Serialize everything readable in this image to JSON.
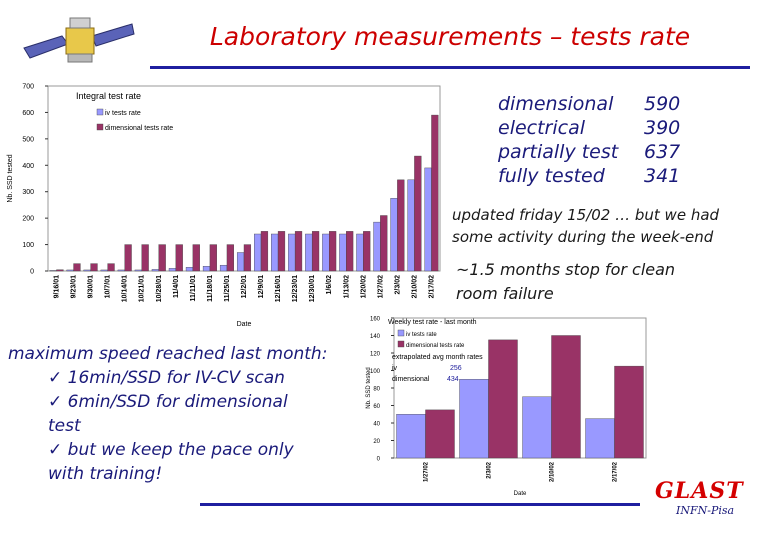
{
  "slide": {
    "title": "Laboratory measurements – tests rate"
  },
  "stats": [
    {
      "label": "dimensional",
      "value": "590"
    },
    {
      "label": "electrical",
      "value": "390"
    },
    {
      "label": "partially test",
      "value": "637"
    },
    {
      "label": "fully tested",
      "value": "341"
    }
  ],
  "notes": {
    "updated_line1": "updated friday 15/02 … but we had",
    "updated_line2": "some activity during the week-end",
    "stop_line1": "~1.5 months stop for clean",
    "stop_line2": "room failure"
  },
  "speed": {
    "line1": "maximum speed reached last month:",
    "line2": "✓ 16min/SSD for IV-CV scan",
    "line3": "✓ 6min/SSD for dimensional",
    "line4": "test",
    "line5": "✓ but we keep the pace only",
    "line6": "with training!"
  },
  "brand": {
    "logo_text": "GLAST",
    "subtitle": "INFN-Pisa"
  },
  "colors": {
    "iv_series": "#9999ff",
    "dimensional_series": "#993366",
    "title": "#cc0000",
    "rule": "#1f1fa0"
  },
  "chart_data": [
    {
      "type": "bar",
      "title": "Integral test rate",
      "ylabel": "Nb. SSD tested",
      "xlabel": "Date",
      "ylim": [
        0,
        700
      ],
      "yticks": [
        0,
        100,
        200,
        300,
        400,
        500,
        600,
        700
      ],
      "legend_position": "top-left",
      "categories": [
        "9/16/01",
        "9/23/01",
        "9/30/01",
        "10/7/01",
        "10/14/01",
        "10/21/01",
        "10/28/01",
        "11/4/01",
        "11/11/01",
        "11/18/01",
        "11/25/01",
        "12/2/01",
        "12/9/01",
        "12/16/01",
        "12/23/01",
        "12/30/01",
        "1/6/02",
        "1/13/02",
        "1/20/02",
        "1/27/02",
        "2/3/02",
        "2/10/02",
        "2/17/02"
      ],
      "series": [
        {
          "name": "iv tests rate",
          "values": [
            2,
            4,
            4,
            4,
            4,
            4,
            6,
            10,
            14,
            18,
            22,
            70,
            140,
            140,
            140,
            140,
            140,
            140,
            140,
            185,
            275,
            345,
            390
          ]
        },
        {
          "name": "dimensional tests rate",
          "values": [
            5,
            28,
            28,
            28,
            100,
            100,
            100,
            100,
            100,
            100,
            100,
            100,
            150,
            150,
            150,
            150,
            150,
            150,
            150,
            210,
            345,
            435,
            590
          ]
        }
      ]
    },
    {
      "type": "bar",
      "title": "Weekly test rate - last month",
      "ylabel": "Nb. SSD tested",
      "xlabel": "Date",
      "ylim": [
        0,
        160
      ],
      "yticks": [
        0,
        20,
        40,
        60,
        80,
        100,
        120,
        140,
        160
      ],
      "legend_position": "top-left",
      "categories": [
        "1/27/02",
        "2/3/02",
        "2/10/02",
        "2/17/02"
      ],
      "series": [
        {
          "name": "iv tests rate",
          "values": [
            50,
            90,
            70,
            45
          ]
        },
        {
          "name": "dimensional tests rate",
          "values": [
            55,
            135,
            140,
            105
          ]
        }
      ],
      "annotations": {
        "header": "extrapolated avg month rates",
        "iv_label": "iv",
        "iv_value": "256",
        "dim_label": "dimensional",
        "dim_value": "434"
      }
    }
  ]
}
